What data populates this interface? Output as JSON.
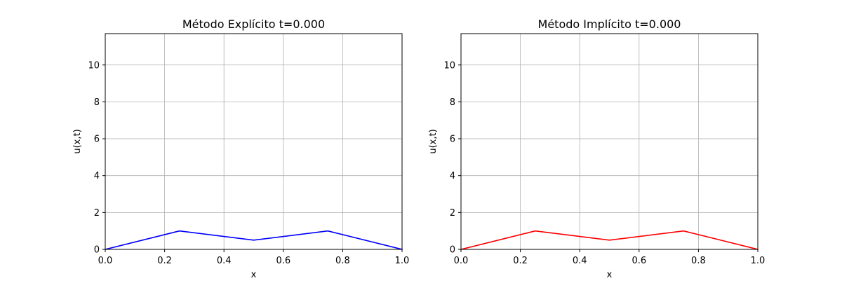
{
  "chart_data": [
    {
      "type": "line",
      "title": "Método Explícito t=0.000",
      "xlabel": "x",
      "ylabel": "u(x,t)",
      "xlim": [
        0.0,
        1.0
      ],
      "ylim": [
        0.0,
        11.7
      ],
      "xticks": [
        0.0,
        0.2,
        0.4,
        0.6,
        0.8,
        1.0
      ],
      "xtick_labels": [
        "0.0",
        "0.2",
        "0.4",
        "0.6",
        "0.8",
        "1.0"
      ],
      "yticks": [
        0,
        2,
        4,
        6,
        8,
        10
      ],
      "ytick_labels": [
        "0",
        "2",
        "4",
        "6",
        "8",
        "10"
      ],
      "grid": true,
      "series": [
        {
          "color": "#0000ff",
          "x": [
            0.0,
            0.25,
            0.5,
            0.75,
            1.0
          ],
          "y": [
            0.0,
            1.0,
            0.5,
            1.0,
            0.0
          ]
        }
      ]
    },
    {
      "type": "line",
      "title": "Método Implícito t=0.000",
      "xlabel": "x",
      "ylabel": "u(x,t)",
      "xlim": [
        0.0,
        1.0
      ],
      "ylim": [
        0.0,
        11.7
      ],
      "xticks": [
        0.0,
        0.2,
        0.4,
        0.6,
        0.8,
        1.0
      ],
      "xtick_labels": [
        "0.0",
        "0.2",
        "0.4",
        "0.6",
        "0.8",
        "1.0"
      ],
      "yticks": [
        0,
        2,
        4,
        6,
        8,
        10
      ],
      "ytick_labels": [
        "0",
        "2",
        "4",
        "6",
        "8",
        "10"
      ],
      "grid": true,
      "series": [
        {
          "color": "#ff0000",
          "x": [
            0.0,
            0.25,
            0.5,
            0.75,
            1.0
          ],
          "y": [
            0.0,
            1.0,
            0.5,
            1.0,
            0.0
          ]
        }
      ]
    }
  ]
}
